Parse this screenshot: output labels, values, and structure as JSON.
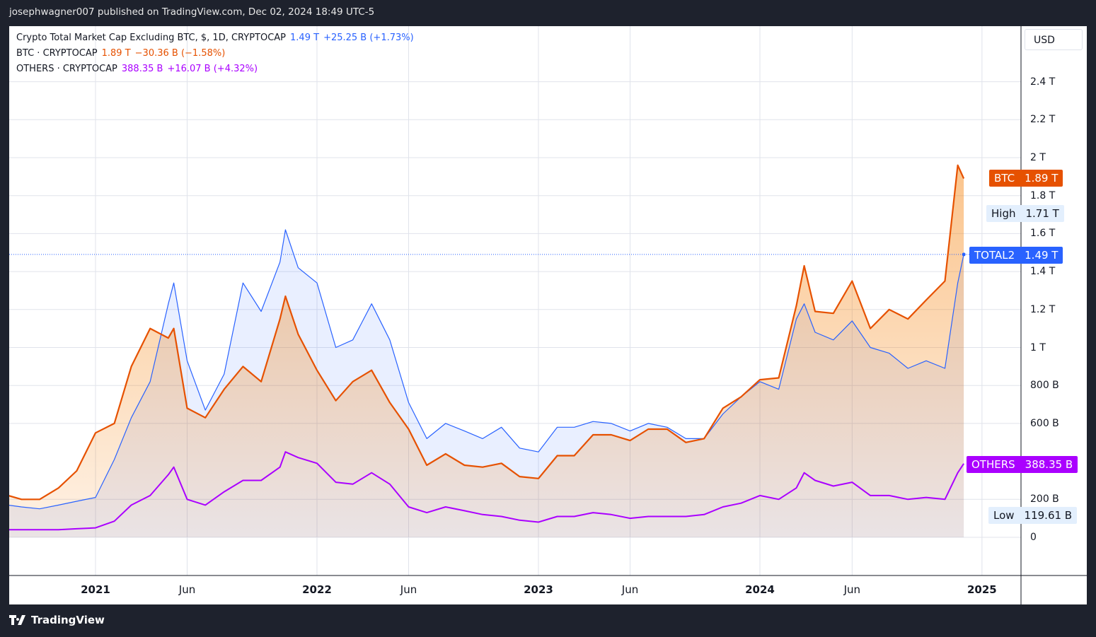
{
  "header": {
    "published": "josephwagner007 published on TradingView.com, Dec 02, 2024 18:49 UTC-5"
  },
  "legend": [
    {
      "name": "Crypto Total Market Cap Excluding BTC, $, 1D, CRYPTOCAP",
      "value": "1.49 T",
      "change": "+25.25 B (+1.73%)",
      "color": "#2962ff"
    },
    {
      "name": "BTC · CRYPTOCAP",
      "value": "1.89 T",
      "change": "−30.36 B (−1.58%)",
      "color": "#e65100"
    },
    {
      "name": "OTHERS · CRYPTOCAP",
      "value": "388.35 B",
      "change": "+16.07 B (+4.32%)",
      "color": "#aa00ff"
    }
  ],
  "price_axis": {
    "currency": "USD"
  },
  "tags": {
    "btc": {
      "label": "BTC",
      "value": "1.89 T",
      "color": "#e65100"
    },
    "high": {
      "label": "High",
      "value": "1.71 T"
    },
    "total2": {
      "label": "TOTAL2",
      "value": "1.49 T",
      "color": "#2962ff"
    },
    "others": {
      "label": "OTHERS",
      "value": "388.35 B",
      "color": "#aa00ff"
    },
    "low": {
      "label": "Low",
      "value": "119.61 B"
    }
  },
  "branding": {
    "logo": "TradingView"
  },
  "chart_data": {
    "type": "line",
    "y_unit": "USD trillions",
    "ylim": [
      0,
      2.5
    ],
    "grid": true,
    "y_ticks": [
      {
        "v": 0,
        "label": "0"
      },
      {
        "v": 0.2,
        "label": "200 B"
      },
      {
        "v": 0.6,
        "label": "600 B"
      },
      {
        "v": 0.8,
        "label": "800 B"
      },
      {
        "v": 1.0,
        "label": "1 T"
      },
      {
        "v": 1.2,
        "label": "1.2 T"
      },
      {
        "v": 1.4,
        "label": "1.4 T"
      },
      {
        "v": 1.6,
        "label": "1.6 T"
      },
      {
        "v": 1.8,
        "label": "1.8 T"
      },
      {
        "v": 2.0,
        "label": "2 T"
      },
      {
        "v": 2.2,
        "label": "2.2 T"
      },
      {
        "v": 2.4,
        "label": "2.4 T"
      }
    ],
    "x_ticks": [
      {
        "date": "2021-01-01",
        "label": "2021",
        "year": true
      },
      {
        "date": "2021-06-01",
        "label": "Jun"
      },
      {
        "date": "2022-01-01",
        "label": "2022",
        "year": true
      },
      {
        "date": "2022-06-01",
        "label": "Jun"
      },
      {
        "date": "2023-01-01",
        "label": "2023",
        "year": true
      },
      {
        "date": "2023-06-01",
        "label": "Jun"
      },
      {
        "date": "2024-01-01",
        "label": "2024",
        "year": true
      },
      {
        "date": "2024-06-01",
        "label": "Jun"
      },
      {
        "date": "2025-01-01",
        "label": "2025",
        "year": true
      }
    ],
    "x": [
      "2020-08-10",
      "2020-09-01",
      "2020-10-01",
      "2020-11-01",
      "2020-12-01",
      "2021-01-01",
      "2021-02-01",
      "2021-03-01",
      "2021-04-01",
      "2021-05-01",
      "2021-05-10",
      "2021-06-01",
      "2021-07-01",
      "2021-08-01",
      "2021-09-01",
      "2021-10-01",
      "2021-11-01",
      "2021-11-10",
      "2021-12-01",
      "2022-01-01",
      "2022-02-01",
      "2022-03-01",
      "2022-04-01",
      "2022-05-01",
      "2022-06-01",
      "2022-07-01",
      "2022-08-01",
      "2022-09-01",
      "2022-10-01",
      "2022-11-01",
      "2022-12-01",
      "2023-01-01",
      "2023-02-01",
      "2023-03-01",
      "2023-04-01",
      "2023-05-01",
      "2023-06-01",
      "2023-07-01",
      "2023-08-01",
      "2023-09-01",
      "2023-10-01",
      "2023-11-01",
      "2023-12-01",
      "2024-01-01",
      "2024-02-01",
      "2024-03-01",
      "2024-03-14",
      "2024-04-01",
      "2024-05-01",
      "2024-06-01",
      "2024-07-01",
      "2024-08-01",
      "2024-09-01",
      "2024-10-01",
      "2024-11-01",
      "2024-11-22",
      "2024-12-02"
    ],
    "series": [
      {
        "name": "TOTAL2",
        "color": "#2962ff",
        "values": [
          0.17,
          0.16,
          0.15,
          0.17,
          0.19,
          0.21,
          0.41,
          0.63,
          0.82,
          1.23,
          1.34,
          0.93,
          0.67,
          0.86,
          1.34,
          1.19,
          1.45,
          1.62,
          1.42,
          1.34,
          1.0,
          1.04,
          1.23,
          1.04,
          0.71,
          0.52,
          0.6,
          0.56,
          0.52,
          0.58,
          0.47,
          0.45,
          0.58,
          0.58,
          0.61,
          0.6,
          0.56,
          0.6,
          0.58,
          0.52,
          0.52,
          0.65,
          0.74,
          0.82,
          0.78,
          1.15,
          1.23,
          1.08,
          1.04,
          1.14,
          1.0,
          0.97,
          0.89,
          0.93,
          0.89,
          1.34,
          1.49
        ]
      },
      {
        "name": "BTC",
        "color": "#e65100",
        "values": [
          0.22,
          0.2,
          0.2,
          0.26,
          0.35,
          0.55,
          0.6,
          0.9,
          1.1,
          1.05,
          1.1,
          0.68,
          0.63,
          0.78,
          0.9,
          0.82,
          1.15,
          1.27,
          1.07,
          0.88,
          0.72,
          0.82,
          0.88,
          0.71,
          0.57,
          0.38,
          0.44,
          0.38,
          0.37,
          0.39,
          0.32,
          0.31,
          0.43,
          0.43,
          0.54,
          0.54,
          0.51,
          0.57,
          0.57,
          0.5,
          0.52,
          0.68,
          0.74,
          0.83,
          0.84,
          1.22,
          1.43,
          1.19,
          1.18,
          1.35,
          1.1,
          1.2,
          1.15,
          1.25,
          1.35,
          1.96,
          1.89
        ]
      },
      {
        "name": "OTHERS",
        "color": "#aa00ff",
        "values": [
          0.04,
          0.04,
          0.04,
          0.04,
          0.045,
          0.05,
          0.085,
          0.17,
          0.22,
          0.33,
          0.37,
          0.2,
          0.17,
          0.24,
          0.3,
          0.3,
          0.37,
          0.45,
          0.42,
          0.39,
          0.29,
          0.28,
          0.34,
          0.28,
          0.16,
          0.13,
          0.16,
          0.14,
          0.12,
          0.11,
          0.09,
          0.08,
          0.11,
          0.11,
          0.13,
          0.12,
          0.1,
          0.11,
          0.11,
          0.11,
          0.12,
          0.16,
          0.18,
          0.22,
          0.2,
          0.26,
          0.34,
          0.3,
          0.27,
          0.29,
          0.22,
          0.22,
          0.2,
          0.21,
          0.2,
          0.34,
          0.388
        ]
      }
    ]
  }
}
